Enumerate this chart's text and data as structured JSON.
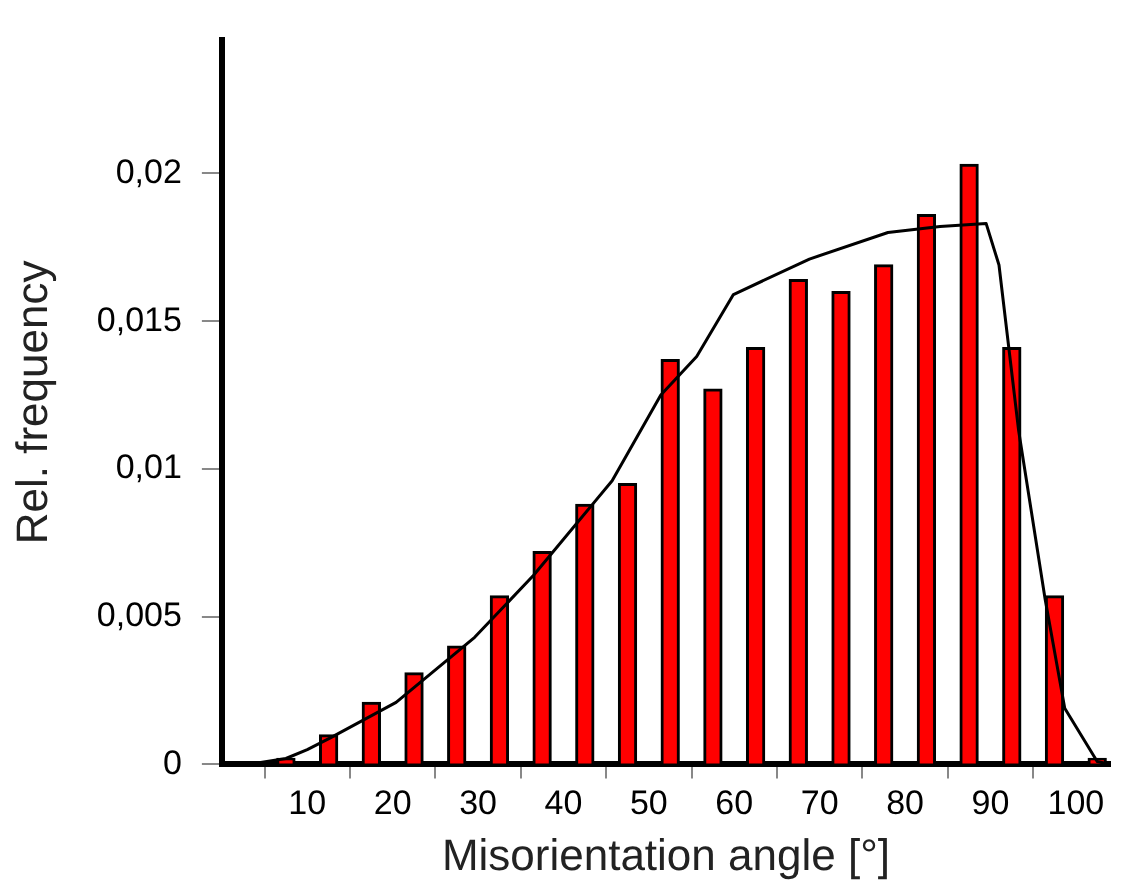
{
  "chart_data": {
    "type": "bar",
    "xlabel": "Misorientation angle [°]",
    "ylabel": "Rel. frequency",
    "xlim": [
      0,
      104
    ],
    "xticks": [
      10,
      20,
      30,
      40,
      50,
      60,
      70,
      80,
      90,
      100
    ],
    "ylim": [
      0,
      0.0245
    ],
    "yticks": [
      0,
      {
        "value": 0.005,
        "label": "0,005"
      },
      {
        "value": 0.01,
        "label": "0,01"
      },
      {
        "value": 0.015,
        "label": "0,015"
      },
      {
        "value": 0.02,
        "label": "0,02"
      }
    ],
    "grid": false,
    "legend": false,
    "marker": "none",
    "series": [
      {
        "color": "#ff0000",
        "x": [
          7.5,
          12.5,
          17.5,
          22.5,
          27.5,
          32.5,
          37.5,
          42.5,
          47.5,
          52.5,
          57.5,
          62.5,
          67.5,
          72.5,
          77.5,
          82.5,
          87.5,
          92.5,
          97.5,
          102.5
        ],
        "values": [
          0.0002,
          0.001,
          0.0021,
          0.0031,
          0.004,
          0.0057,
          0.0072,
          0.0088,
          0.0095,
          0.0137,
          0.0127,
          0.0141,
          0.0164,
          0.016,
          0.0169,
          0.0186,
          0.0203,
          0.0141,
          0.0057,
          0.0002
        ]
      },
      {
        "type": "line",
        "color": "#000000",
        "x": [
          3,
          7.5,
          10,
          12.7,
          20.4,
          29.6,
          36.5,
          43.4,
          45.7,
          51.4,
          55.6,
          59.9,
          68.8,
          78,
          84.1,
          89.5,
          91,
          93.3,
          96.4,
          98.7,
          102.5,
          104
        ],
        "values": [
          0,
          0.0002,
          0.0005,
          0.0009,
          0.0021,
          0.0043,
          0.0064,
          0.0088,
          0.0096,
          0.0125,
          0.0138,
          0.0159,
          0.0171,
          0.018,
          0.0182,
          0.0183,
          0.0169,
          0.0113,
          0.0056,
          0.0019,
          0.0001,
          0
        ]
      }
    ]
  }
}
